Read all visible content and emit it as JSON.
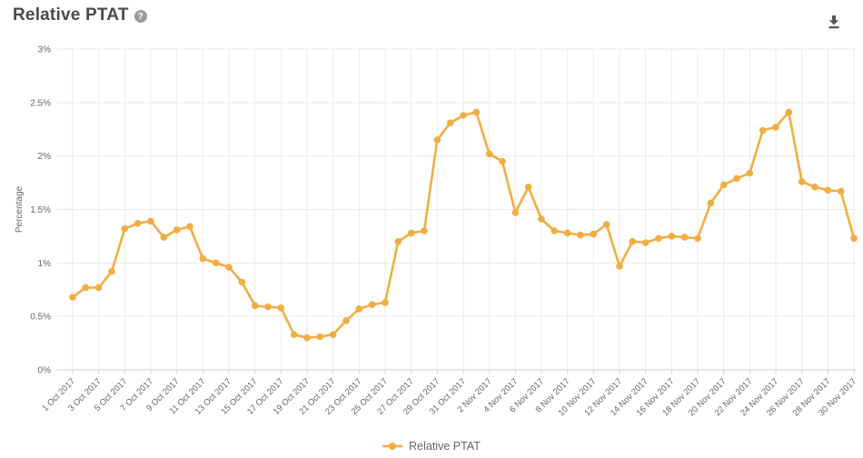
{
  "header": {
    "title": "Relative PTAT",
    "help_glyph": "?"
  },
  "legend": {
    "label": "Relative PTAT"
  },
  "colors": {
    "series": "#F0AE42",
    "axis_line": "#ccd6eb",
    "grid_h": "#e9e9e9",
    "grid_v": "#e8eaf2",
    "text": "#666666",
    "title": "#4a4a4a"
  },
  "chart_data": {
    "type": "line",
    "title": "Relative PTAT",
    "xlabel": "",
    "ylabel": "Percentage",
    "series_name": "Relative PTAT",
    "ylim": [
      0,
      3
    ],
    "y_tick_labels": [
      "0%",
      "0.5%",
      "1%",
      "1.5%",
      "2%",
      "2.5%",
      "3%"
    ],
    "x_tick_interval": 2,
    "grid": true,
    "legend_position": "bottom-center",
    "categories": [
      "1 Oct 2017",
      "2 Oct 2017",
      "3 Oct 2017",
      "4 Oct 2017",
      "5 Oct 2017",
      "6 Oct 2017",
      "7 Oct 2017",
      "8 Oct 2017",
      "9 Oct 2017",
      "10 Oct 2017",
      "11 Oct 2017",
      "12 Oct 2017",
      "13 Oct 2017",
      "14 Oct 2017",
      "15 Oct 2017",
      "16 Oct 2017",
      "17 Oct 2017",
      "18 Oct 2017",
      "19 Oct 2017",
      "20 Oct 2017",
      "21 Oct 2017",
      "22 Oct 2017",
      "23 Oct 2017",
      "24 Oct 2017",
      "25 Oct 2017",
      "26 Oct 2017",
      "27 Oct 2017",
      "28 Oct 2017",
      "29 Oct 2017",
      "30 Oct 2017",
      "31 Oct 2017",
      "1 Nov 2017",
      "2 Nov 2017",
      "3 Nov 2017",
      "4 Nov 2017",
      "5 Nov 2017",
      "6 Nov 2017",
      "7 Nov 2017",
      "8 Nov 2017",
      "9 Nov 2017",
      "10 Nov 2017",
      "11 Nov 2017",
      "12 Nov 2017",
      "13 Nov 2017",
      "14 Nov 2017",
      "15 Nov 2017",
      "16 Nov 2017",
      "17 Nov 2017",
      "18 Nov 2017",
      "19 Nov 2017",
      "20 Nov 2017",
      "21 Nov 2017",
      "22 Nov 2017",
      "23 Nov 2017",
      "24 Nov 2017",
      "25 Nov 2017",
      "26 Nov 2017",
      "27 Nov 2017",
      "28 Nov 2017",
      "29 Nov 2017",
      "30 Nov 2017"
    ],
    "values": [
      0.68,
      0.77,
      0.77,
      0.92,
      1.32,
      1.37,
      1.39,
      1.24,
      1.31,
      1.34,
      1.04,
      1.0,
      0.96,
      0.82,
      0.6,
      0.59,
      0.58,
      0.33,
      0.3,
      0.31,
      0.33,
      0.46,
      0.57,
      0.61,
      0.63,
      1.2,
      1.28,
      1.3,
      2.15,
      2.31,
      2.38,
      2.41,
      2.02,
      1.95,
      1.47,
      1.71,
      1.41,
      1.3,
      1.28,
      1.26,
      1.27,
      1.36,
      0.97,
      1.2,
      1.19,
      1.23,
      1.25,
      1.24,
      1.23,
      1.56,
      1.73,
      1.79,
      1.84,
      2.24,
      2.27,
      2.41,
      1.76,
      1.71,
      1.68,
      1.67,
      1.23
    ]
  }
}
